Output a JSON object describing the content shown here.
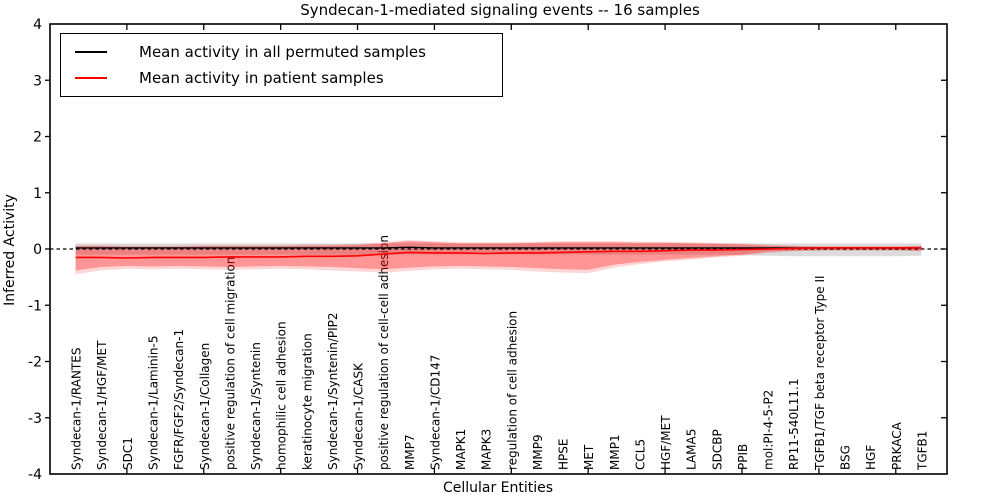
{
  "title": "Syndecan-1-mediated signaling events -- 16 samples",
  "legend": {
    "items": [
      {
        "label": "Mean activity in all permuted samples",
        "color": "#000000"
      },
      {
        "label": "Mean activity in patient samples",
        "color": "#ff0000"
      }
    ]
  },
  "chart_data": {
    "type": "line",
    "title": "Syndecan-1-mediated signaling events -- 16 samples",
    "xlabel": "Cellular Entities",
    "ylabel": "Inferred Activity",
    "ylim": [
      -4,
      4
    ],
    "yticks": [
      -4,
      -3,
      -2,
      -1,
      0,
      1,
      2,
      3,
      4
    ],
    "grid": false,
    "legend_position": "upper left",
    "zero_line": 0,
    "categories": [
      "Syndecan-1/RANTES",
      "Syndecan-1/HGF/MET",
      "SDC1",
      "Syndecan-1/Laminin-5",
      "FGFR/FGF2/Syndecan-1",
      "Syndecan-1/Collagen",
      "positive regulation of cell migration",
      "Syndecan-1/Syntenin",
      "homophilic cell adhesion",
      "keratinocyte migration",
      "Syndecan-1/Syntenin/PIP2",
      "Syndecan-1/CASK",
      "positive regulation of cell-cell adhesion",
      "MMP7",
      "Syndecan-1/CD147",
      "MAPK1",
      "MAPK3",
      "regulation of cell adhesion",
      "MMP9",
      "HPSE",
      "MET",
      "MMP1",
      "CCL5",
      "HGF/MET",
      "LAMA5",
      "SDCBP",
      "PPIB",
      "mol:PI-4-5-P2",
      "RP11-540L11.1",
      "TGFB1/TGF beta receptor Type II",
      "BSG",
      "HGF",
      "PRKACA",
      "TGFB1"
    ],
    "series": [
      {
        "name": "Mean activity in all permuted samples",
        "color": "#000000",
        "values": [
          0.02,
          0.02,
          0.02,
          0.02,
          0.02,
          0.02,
          0.02,
          0.02,
          0.02,
          0.02,
          0.02,
          0.02,
          0.02,
          0.03,
          0.02,
          0.02,
          0.02,
          0.02,
          0.02,
          0.02,
          0.02,
          0.02,
          0.02,
          0.02,
          0.02,
          0.02,
          0.02,
          0.02,
          0.02,
          0.02,
          0.02,
          0.02,
          0.02,
          0.02
        ]
      },
      {
        "name": "Mean activity in patient samples",
        "color": "#ff0000",
        "values": [
          -0.15,
          -0.15,
          -0.16,
          -0.15,
          -0.15,
          -0.15,
          -0.14,
          -0.14,
          -0.14,
          -0.13,
          -0.13,
          -0.12,
          -0.09,
          -0.06,
          -0.07,
          -0.07,
          -0.08,
          -0.07,
          -0.07,
          -0.06,
          -0.05,
          -0.04,
          -0.04,
          -0.03,
          -0.02,
          -0.02,
          -0.01,
          0.0,
          0.01,
          0.02,
          0.02,
          0.02,
          0.02,
          0.02
        ]
      }
    ],
    "bands": [
      {
        "name": "permuted-samples-band",
        "color": "rgba(128,128,128,0.28)",
        "upper": [
          0.1,
          0.1,
          0.1,
          0.1,
          0.1,
          0.1,
          0.1,
          0.1,
          0.1,
          0.1,
          0.1,
          0.1,
          0.1,
          0.1,
          0.1,
          0.1,
          0.1,
          0.1,
          0.1,
          0.1,
          0.1,
          0.1,
          0.1,
          0.1,
          0.1,
          0.1,
          0.1,
          0.1,
          0.1,
          0.1,
          0.1,
          0.1,
          0.1,
          0.1
        ],
        "lower": [
          -0.1,
          -0.1,
          -0.1,
          -0.1,
          -0.1,
          -0.1,
          -0.1,
          -0.1,
          -0.1,
          -0.1,
          -0.1,
          -0.1,
          -0.1,
          -0.1,
          -0.1,
          -0.1,
          -0.1,
          -0.1,
          -0.1,
          -0.1,
          -0.1,
          -0.1,
          -0.1,
          -0.1,
          -0.1,
          -0.1,
          -0.11,
          -0.12,
          -0.13,
          -0.13,
          -0.13,
          -0.13,
          -0.13,
          -0.12
        ]
      },
      {
        "name": "patient-samples-band-outer",
        "color": "rgba(255,0,0,0.16)",
        "upper": [
          0.07,
          0.07,
          0.06,
          0.06,
          0.06,
          0.07,
          0.07,
          0.07,
          0.07,
          0.08,
          0.08,
          0.09,
          0.12,
          0.16,
          0.14,
          0.12,
          0.12,
          0.12,
          0.13,
          0.14,
          0.14,
          0.14,
          0.13,
          0.13,
          0.12,
          0.11,
          0.1,
          0.08,
          0.06,
          0.05,
          0.05,
          0.05,
          0.05,
          0.06
        ],
        "lower": [
          -0.45,
          -0.38,
          -0.35,
          -0.36,
          -0.35,
          -0.36,
          -0.37,
          -0.36,
          -0.35,
          -0.36,
          -0.38,
          -0.4,
          -0.42,
          -0.39,
          -0.36,
          -0.35,
          -0.36,
          -0.37,
          -0.4,
          -0.42,
          -0.43,
          -0.33,
          -0.27,
          -0.22,
          -0.19,
          -0.15,
          -0.12,
          -0.07,
          -0.04,
          -0.03,
          -0.03,
          -0.03,
          -0.03,
          -0.04
        ]
      },
      {
        "name": "patient-samples-band-inner",
        "color": "rgba(255,0,0,0.30)",
        "upper": [
          0.05,
          0.05,
          0.04,
          0.04,
          0.04,
          0.05,
          0.05,
          0.05,
          0.05,
          0.06,
          0.06,
          0.07,
          0.1,
          0.14,
          0.12,
          0.1,
          0.1,
          0.1,
          0.11,
          0.12,
          0.12,
          0.12,
          0.11,
          0.11,
          0.1,
          0.09,
          0.08,
          0.06,
          0.05,
          0.04,
          0.04,
          0.04,
          0.04,
          0.05
        ],
        "lower": [
          -0.38,
          -0.32,
          -0.3,
          -0.31,
          -0.3,
          -0.31,
          -0.32,
          -0.31,
          -0.3,
          -0.31,
          -0.32,
          -0.34,
          -0.36,
          -0.33,
          -0.31,
          -0.3,
          -0.31,
          -0.32,
          -0.34,
          -0.36,
          -0.37,
          -0.28,
          -0.23,
          -0.19,
          -0.16,
          -0.13,
          -0.1,
          -0.05,
          -0.03,
          -0.02,
          -0.02,
          -0.02,
          -0.02,
          -0.03
        ]
      }
    ],
    "xtick_category_indices": [
      2,
      5,
      8,
      11,
      14,
      17,
      20,
      23,
      26,
      29,
      32
    ]
  }
}
